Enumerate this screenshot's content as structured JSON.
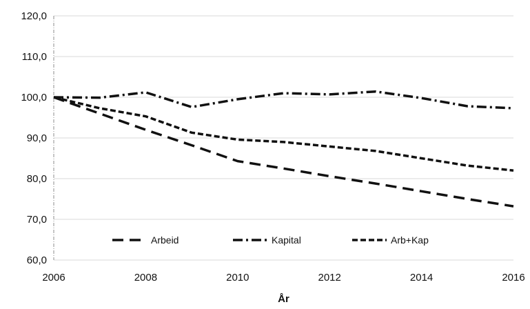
{
  "chart_data": {
    "type": "line",
    "title": "",
    "xlabel": "År",
    "ylabel": "",
    "x": [
      2006,
      2007,
      2008,
      2009,
      2010,
      2011,
      2012,
      2013,
      2014,
      2015,
      2016
    ],
    "xlim": [
      2006,
      2016
    ],
    "ylim": [
      60,
      120
    ],
    "x_ticks": [
      2006,
      2008,
      2010,
      2012,
      2014,
      2016
    ],
    "x_tick_labels": [
      "2006",
      "2008",
      "2010",
      "2012",
      "2014",
      "2016"
    ],
    "y_ticks": [
      60,
      70,
      80,
      90,
      100,
      110,
      120
    ],
    "y_tick_labels": [
      "60,0",
      "70,0",
      "80,0",
      "90,0",
      "100,0",
      "110,0",
      "120,0"
    ],
    "grid": "y-major",
    "legend_position": "bottom-inside",
    "series": [
      {
        "name": "Arbeid",
        "style": "dashed",
        "values": [
          100.0,
          96.0,
          92.0,
          88.2,
          84.3,
          82.5,
          80.6,
          78.8,
          76.9,
          75.0,
          73.2
        ]
      },
      {
        "name": "Kapital",
        "style": "dash-dot",
        "values": [
          100.0,
          99.9,
          101.2,
          97.6,
          99.5,
          101.0,
          100.7,
          101.4,
          99.8,
          97.8,
          97.3
        ]
      },
      {
        "name": "Arb+Kap",
        "style": "short-dash",
        "values": [
          100.0,
          97.3,
          95.3,
          91.3,
          89.6,
          89.0,
          87.9,
          86.8,
          85.0,
          83.2,
          82.0
        ]
      }
    ],
    "colors": {
      "line": "#111111",
      "grid": "#d9d9d9",
      "axis": "#8c8c8c"
    }
  }
}
